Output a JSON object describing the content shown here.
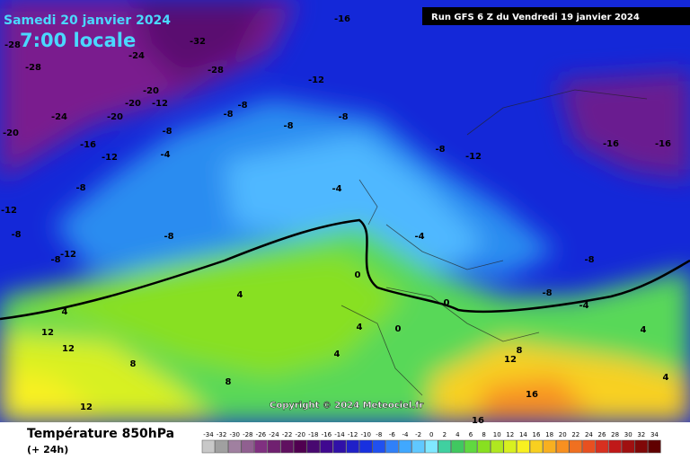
{
  "header": {
    "date": "Samedi 20 janvier 2024",
    "time": "7:00 locale",
    "run": "Run GFS 6 Z du Vendredi 19 janvier 2024"
  },
  "copyright": "Copyright © 2024 Meteociel.fr",
  "legend": {
    "title": "Température 850hPa",
    "subtitle": "(+ 24h)",
    "values": [
      -34,
      -32,
      -30,
      -28,
      -26,
      -24,
      -22,
      -20,
      -18,
      -16,
      -14,
      -12,
      -10,
      -8,
      -6,
      -4,
      -2,
      0,
      2,
      4,
      6,
      8,
      10,
      12,
      14,
      16,
      18,
      20,
      22,
      24,
      26,
      28,
      30,
      32,
      34
    ]
  },
  "contour_labels": [
    -28,
    -28,
    -24,
    -32,
    -28,
    -20,
    -20,
    -12,
    -20,
    -24,
    -20,
    -16,
    -12,
    -8,
    -8,
    -8,
    -8,
    -8,
    -12,
    -16,
    -4,
    -8,
    -12,
    -8,
    -12,
    -8,
    -8,
    -4,
    -8,
    -12,
    -16,
    -16,
    -4,
    -8,
    -8,
    -4,
    0,
    0,
    0,
    4,
    4,
    8,
    12,
    12,
    4,
    4,
    8,
    12,
    16,
    16,
    12,
    8,
    4,
    4
  ]
}
